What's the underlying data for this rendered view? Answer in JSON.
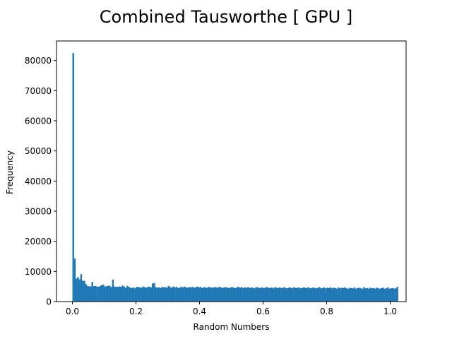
{
  "chart_data": {
    "type": "bar",
    "title": "Combined Tausworthe [ GPU ]",
    "xlabel": "Random Numbers",
    "ylabel": "Frequency",
    "xlim": [
      -0.05,
      1.05
    ],
    "ylim": [
      0,
      86500
    ],
    "x_ticks": [
      0.0,
      0.2,
      0.4,
      0.6,
      0.8,
      1.0
    ],
    "x_tick_labels": [
      "0.0",
      "0.2",
      "0.4",
      "0.6",
      "0.8",
      "1.0"
    ],
    "y_ticks": [
      0,
      10000,
      20000,
      30000,
      40000,
      50000,
      60000,
      70000,
      80000
    ],
    "y_tick_labels": [
      "0",
      "10000",
      "20000",
      "30000",
      "40000",
      "50000",
      "60000",
      "70000",
      "80000"
    ],
    "color": "#1f77b4",
    "grid": false,
    "bin_start": 0.0,
    "bin_width": 0.005,
    "values": [
      82500,
      14300,
      7600,
      8100,
      7400,
      9100,
      6900,
      6900,
      5800,
      5200,
      5100,
      5000,
      6500,
      5100,
      5200,
      5000,
      4900,
      5200,
      5500,
      5600,
      5000,
      5100,
      5300,
      5200,
      4800,
      7300,
      5000,
      4900,
      4900,
      5000,
      4900,
      5300,
      5000,
      4600,
      5200,
      4900,
      4600,
      4500,
      4700,
      4400,
      4900,
      4800,
      4700,
      4600,
      5000,
      4800,
      4600,
      4900,
      4900,
      4700,
      6000,
      6200,
      4800,
      4600,
      4700,
      4500,
      4900,
      4700,
      4800,
      4600,
      5200,
      4800,
      4600,
      5000,
      4700,
      4900,
      4500,
      4600,
      4900,
      4700,
      5000,
      4700,
      4600,
      4800,
      4700,
      4900,
      4600,
      4700,
      5000,
      4700,
      4900,
      4500,
      4700,
      4800,
      4500,
      4900,
      4700,
      4700,
      4600,
      4800,
      4700,
      4600,
      4900,
      4700,
      4500,
      4700,
      4800,
      4600,
      4500,
      4700,
      4800,
      4600,
      4500,
      4700,
      4900,
      4600,
      4800,
      4500,
      4700,
      4600,
      4800,
      4500,
      4700,
      4600,
      4400,
      4700,
      4800,
      4500,
      4600,
      4700,
      4400,
      4700,
      4800,
      4600,
      4500,
      4700,
      4400,
      4800,
      4600,
      4500,
      4700,
      4500,
      4600,
      4800,
      4400,
      4500,
      4700,
      4600,
      4400,
      4800,
      4500,
      4600,
      4700,
      4400,
      4500,
      4700,
      4600,
      4500,
      4800,
      4400,
      4500,
      4700,
      4500,
      4400,
      4600,
      4800,
      4400,
      4500,
      4700,
      4400,
      4600,
      4500,
      4700,
      4400,
      4600,
      4500,
      4300,
      4700,
      4400,
      4600,
      4500,
      4700,
      4400,
      4300,
      4600,
      4500,
      4400,
      4700,
      4300,
      4500,
      4600,
      4400,
      4300,
      4800,
      4400,
      4500,
      4300,
      4600,
      4400,
      4500,
      4300,
      4600,
      4400,
      4300,
      4500,
      4600,
      4300,
      4400,
      4700,
      4300,
      4400,
      4500,
      4300,
      4400,
      4900
    ]
  }
}
